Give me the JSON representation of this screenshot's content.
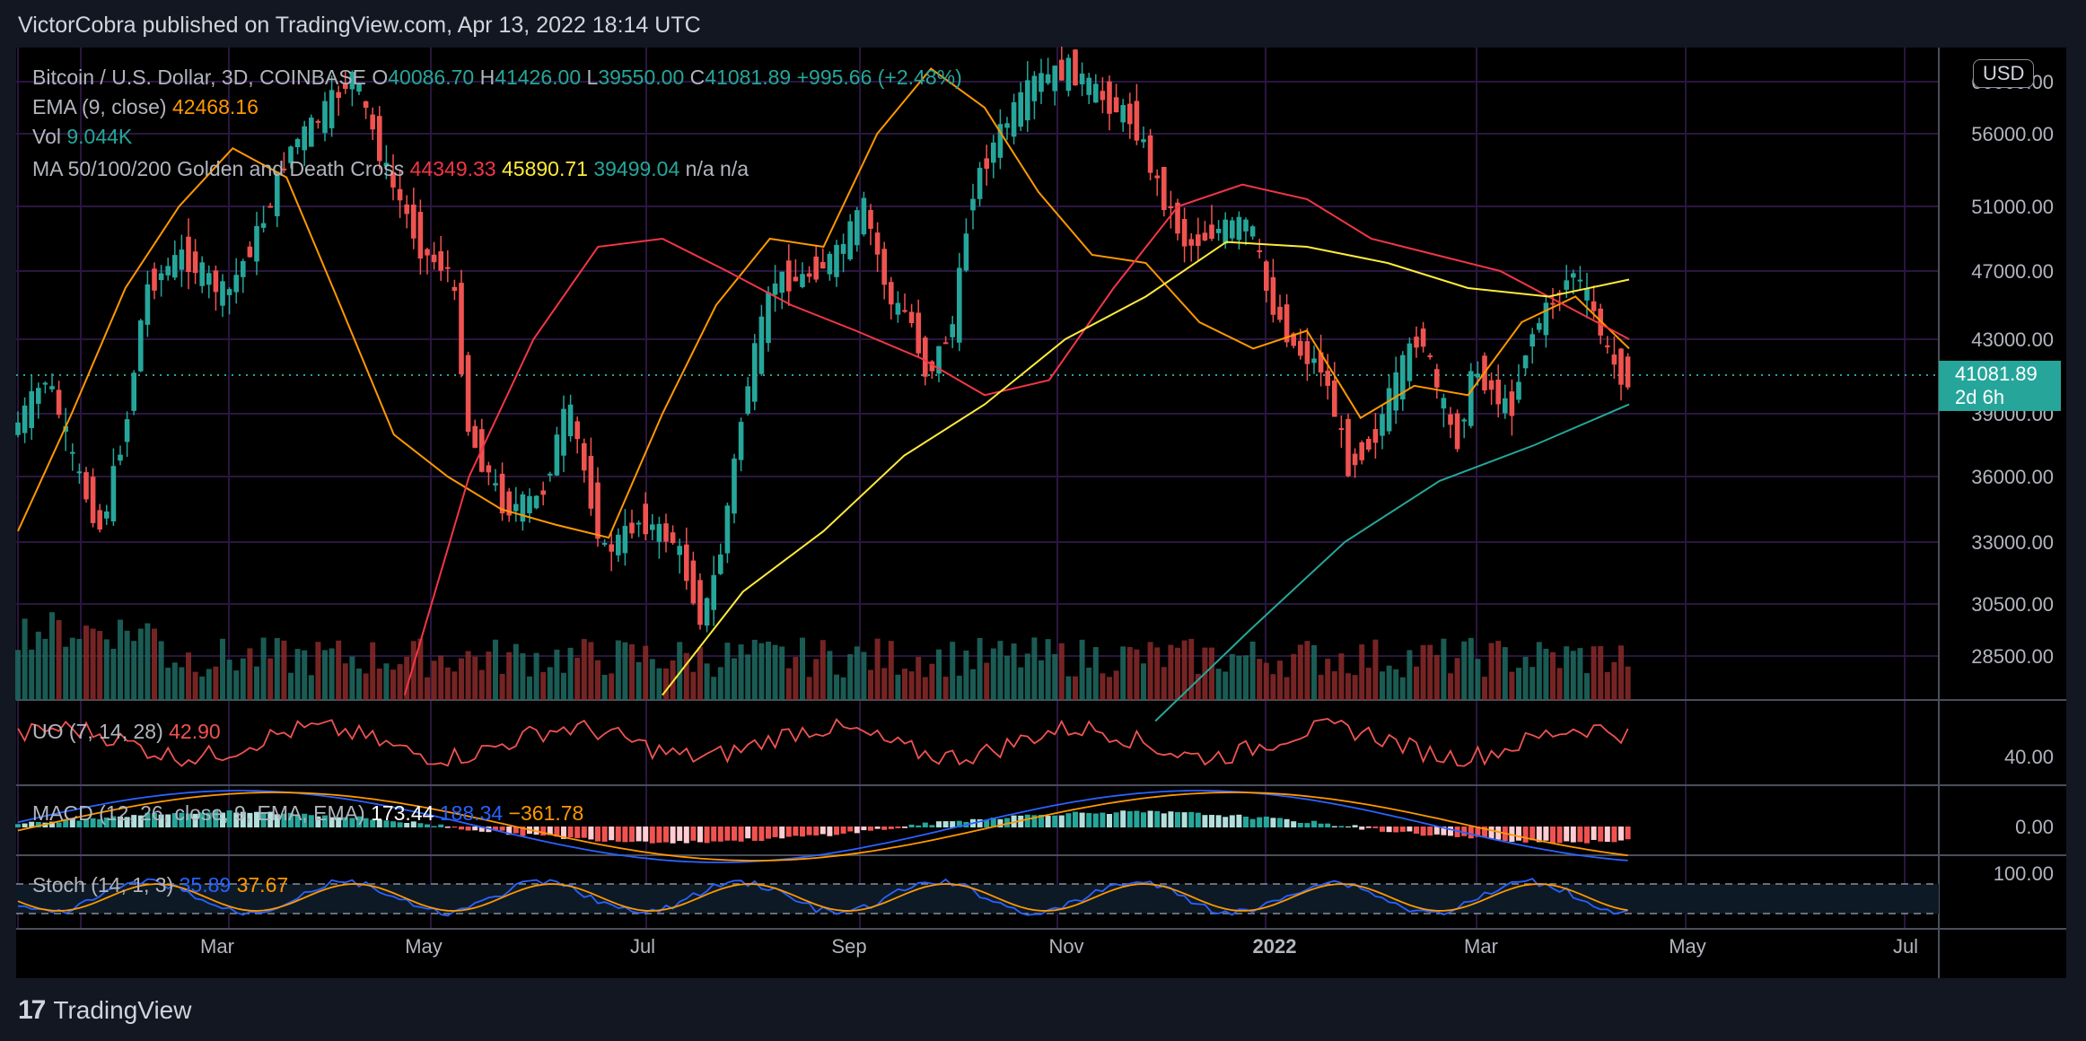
{
  "caption": "VictorCobra published on TradingView.com, Apr 13, 2022 18:14 UTC",
  "footer": {
    "brand": "TradingView",
    "logo_icon": "tradingview-logo-icon"
  },
  "currency": "USD",
  "last_price": {
    "value": "41081.89",
    "countdown": "2d 6h"
  },
  "legend": {
    "symbol": "Bitcoin / U.S. Dollar, 3D, COINBASE",
    "o_label": "O",
    "o": "40086.70",
    "h_label": "H",
    "h": "41426.00",
    "l_label": "L",
    "l": "39550.00",
    "c_label": "C",
    "c": "41081.89",
    "change": "+995.66 (+2.48%)",
    "ema_label": "EMA (9, close)",
    "ema_value": "42468.16",
    "vol_label": "Vol",
    "vol_value": "9.044K",
    "ma_label": "MA 50/100/200 Golden and Death Cross",
    "ma50": "44349.33",
    "ma100": "45890.71",
    "ma200": "39499.04",
    "na1": "n/a",
    "na2": "n/a"
  },
  "uo": {
    "label": "UO (7, 14, 28)",
    "value": "42.90"
  },
  "macd": {
    "label": "MACD (12, 26, close, 9, EMA, EMA)",
    "v1": "173.44",
    "v2": "188.34",
    "v3": "−361.78"
  },
  "stoch": {
    "label": "Stoch (14, 1, 3)",
    "k": "35.89",
    "d": "37.67"
  },
  "colors": {
    "up": "#26a69a",
    "down": "#ef5350",
    "ema": "#ff9800",
    "ma50": "#f23645",
    "ma100": "#ffeb3b",
    "ma200": "#26a69a",
    "macd_line": "#2962ff",
    "signal": "#ff9800"
  },
  "chart_data": {
    "type": "candlestick",
    "timeframe": "3D",
    "y_ticks": [
      "60000.00",
      "56000.00",
      "51000.00",
      "47000.00",
      "43000.00",
      "39000.00",
      "36000.00",
      "33000.00",
      "30500.00",
      "28500.00"
    ],
    "uo_ticks": [
      "40.00"
    ],
    "macd_ticks": [
      "0.00"
    ],
    "stoch_ticks": [
      "100.00"
    ],
    "x_ticks": [
      "Mar",
      "May",
      "Jul",
      "Sep",
      "Nov",
      "2022",
      "Mar",
      "May",
      "Jul"
    ],
    "ema9": [
      33500,
      39000,
      46000,
      51000,
      55000,
      53000,
      45000,
      38000,
      36000,
      34500,
      33800,
      33200,
      39000,
      45000,
      49000,
      48500,
      56000,
      61000,
      58000,
      52000,
      48000,
      47500,
      44000,
      42500,
      43500,
      38800,
      40500,
      40000,
      44000,
      45500,
      42500
    ],
    "ma50": [
      null,
      null,
      null,
      null,
      null,
      null,
      27000,
      36000,
      43000,
      48500,
      49000,
      47000,
      45000,
      43500,
      42000,
      40000,
      40800,
      46000,
      51000,
      52500,
      51500,
      49000,
      48000,
      47000,
      45000,
      43000
    ],
    "ma100": [
      null,
      null,
      null,
      null,
      null,
      null,
      null,
      null,
      27000,
      31000,
      33500,
      37000,
      39500,
      43000,
      45500,
      48800,
      48500,
      47500,
      46000,
      45500,
      46500
    ],
    "ma200": [
      null,
      null,
      null,
      null,
      null,
      null,
      null,
      null,
      null,
      null,
      null,
      null,
      26000,
      29500,
      33000,
      35800,
      37500,
      39500
    ],
    "uo_range": [
      35,
      65
    ],
    "stoch_levels": [
      20,
      80
    ]
  }
}
